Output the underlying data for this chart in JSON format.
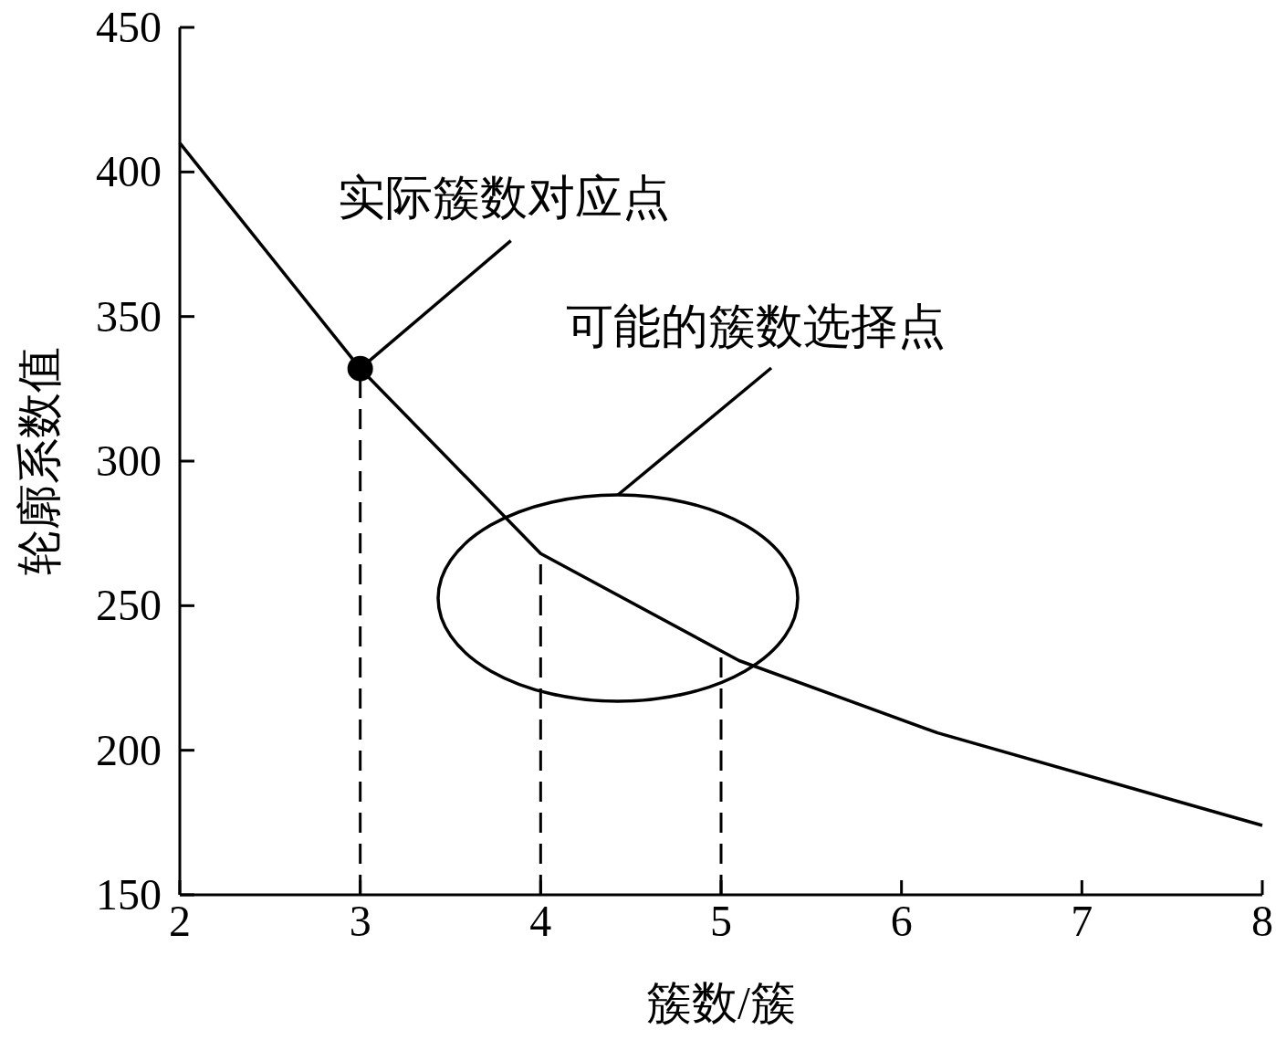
{
  "chart_data": {
    "type": "line",
    "xlabel": "簇数/簇",
    "ylabel": "轮廓系数值",
    "xlim": [
      2,
      8
    ],
    "ylim": [
      150,
      450
    ],
    "xticks": [
      2,
      3,
      4,
      5,
      6,
      7,
      8
    ],
    "yticks": [
      150,
      200,
      250,
      300,
      350,
      400,
      450
    ],
    "grid": false,
    "series": [
      {
        "color": "#000000",
        "marker": "none",
        "x": [
          2,
          3,
          4,
          5.1,
          6.2,
          8
        ],
        "values": [
          410,
          332,
          268,
          231,
          206,
          174
        ]
      },
      {
        "type": "scatter",
        "color": "#000000",
        "x": [
          3
        ],
        "values": [
          332
        ]
      }
    ],
    "ref_lines": [
      {
        "axis": "x",
        "value": 3,
        "line_style": "dashed",
        "color": "#000000"
      },
      {
        "axis": "x",
        "value": 4,
        "line_style": "dashed",
        "color": "#000000"
      },
      {
        "axis": "x",
        "value": 5,
        "line_style": "dashed",
        "color": "#000000"
      }
    ],
    "annotations": [
      {
        "text": "实际簇数对应点",
        "x": 3,
        "y": 332
      },
      "可能的簇数选择点"
    ]
  }
}
